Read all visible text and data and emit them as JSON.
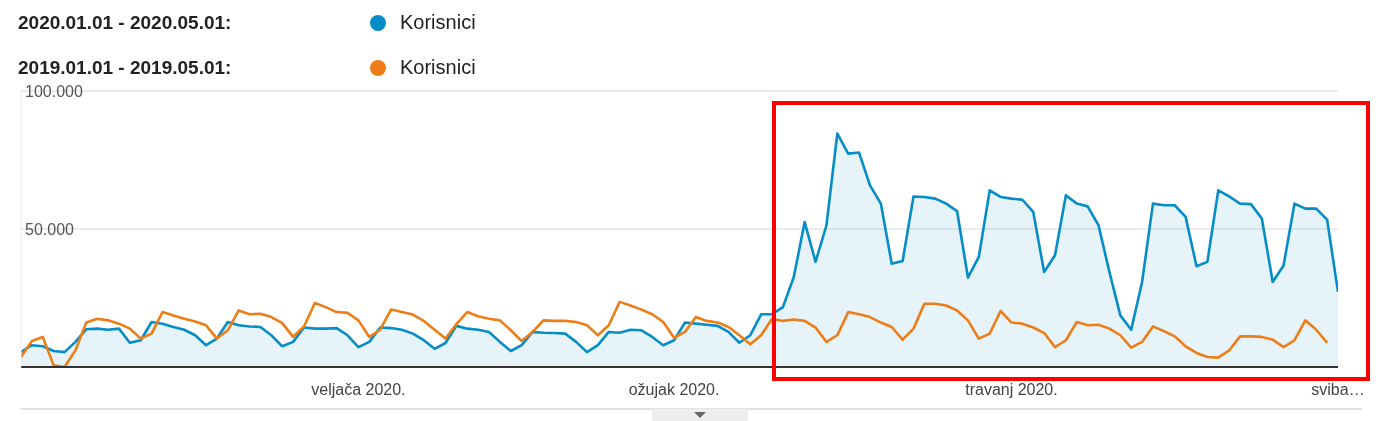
{
  "chart_data": {
    "type": "area",
    "legend": "top left",
    "grid": "y",
    "marker": "none",
    "line_style": "solid",
    "annotations": [
      "2020.01.01 - 2020.05.01:",
      "2019.01.01 - 2019.05.01:"
    ],
    "xlim": [
      "2020-01-01",
      "2020-05-01"
    ],
    "xticks": [
      {
        "value": "2020-02-01",
        "label": "veljača 2020."
      },
      {
        "value": "2020-03-01",
        "label": "ožujak 2020."
      },
      {
        "value": "2020-04-01",
        "label": "travanj 2020."
      },
      {
        "value": "2020-05-01",
        "label": "sviba…"
      }
    ],
    "ylim": [
      0,
      100000
    ],
    "yticks": [
      {
        "value": 0,
        "label": null
      },
      {
        "value": 50000,
        "label": "50.000"
      },
      {
        "value": 100000,
        "label": "100.000"
      }
    ],
    "x": [
      "2020-01-01",
      "2020-01-02",
      "2020-01-03",
      "2020-01-04",
      "2020-01-05",
      "2020-01-06",
      "2020-01-07",
      "2020-01-08",
      "2020-01-09",
      "2020-01-10",
      "2020-01-11",
      "2020-01-12",
      "2020-01-13",
      "2020-01-14",
      "2020-01-15",
      "2020-01-16",
      "2020-01-17",
      "2020-01-18",
      "2020-01-19",
      "2020-01-20",
      "2020-01-21",
      "2020-01-22",
      "2020-01-23",
      "2020-01-24",
      "2020-01-25",
      "2020-01-26",
      "2020-01-27",
      "2020-01-28",
      "2020-01-29",
      "2020-01-30",
      "2020-01-31",
      "2020-02-01",
      "2020-02-02",
      "2020-02-03",
      "2020-02-04",
      "2020-02-05",
      "2020-02-06",
      "2020-02-07",
      "2020-02-08",
      "2020-02-09",
      "2020-02-10",
      "2020-02-11",
      "2020-02-12",
      "2020-02-13",
      "2020-02-14",
      "2020-02-15",
      "2020-02-16",
      "2020-02-17",
      "2020-02-18",
      "2020-02-19",
      "2020-02-20",
      "2020-02-21",
      "2020-02-22",
      "2020-02-23",
      "2020-02-24",
      "2020-02-25",
      "2020-02-26",
      "2020-02-27",
      "2020-02-28",
      "2020-02-29",
      "2020-03-01",
      "2020-03-02",
      "2020-03-03",
      "2020-03-04",
      "2020-03-05",
      "2020-03-06",
      "2020-03-07",
      "2020-03-08",
      "2020-03-09",
      "2020-03-10",
      "2020-03-11",
      "2020-03-12",
      "2020-03-13",
      "2020-03-14",
      "2020-03-15",
      "2020-03-16",
      "2020-03-17",
      "2020-03-18",
      "2020-03-19",
      "2020-03-20",
      "2020-03-21",
      "2020-03-22",
      "2020-03-23",
      "2020-03-24",
      "2020-03-25",
      "2020-03-26",
      "2020-03-27",
      "2020-03-28",
      "2020-03-29",
      "2020-03-30",
      "2020-03-31",
      "2020-04-01",
      "2020-04-02",
      "2020-04-03",
      "2020-04-04",
      "2020-04-05",
      "2020-04-06",
      "2020-04-07",
      "2020-04-08",
      "2020-04-09",
      "2020-04-10",
      "2020-04-11",
      "2020-04-12",
      "2020-04-13",
      "2020-04-14",
      "2020-04-15",
      "2020-04-16",
      "2020-04-17",
      "2020-04-18",
      "2020-04-19",
      "2020-04-20",
      "2020-04-21",
      "2020-04-22",
      "2020-04-23",
      "2020-04-24",
      "2020-04-25",
      "2020-04-26",
      "2020-04-27",
      "2020-04-28",
      "2020-04-29",
      "2020-04-30",
      "2020-05-01"
    ],
    "series": [
      {
        "name": "Korisnici",
        "color": "#058dc7",
        "values": [
          5400,
          7900,
          7500,
          5800,
          5400,
          9100,
          13700,
          13900,
          13500,
          13900,
          8800,
          9700,
          16300,
          15700,
          14500,
          13500,
          11500,
          7900,
          10300,
          16300,
          15100,
          14700,
          14500,
          11500,
          7500,
          9100,
          14300,
          13900,
          13900,
          14100,
          11500,
          7200,
          9100,
          14300,
          14100,
          13500,
          12100,
          9700,
          6600,
          8700,
          14900,
          13900,
          13500,
          12700,
          9100,
          5800,
          7900,
          12700,
          12400,
          12300,
          12100,
          9100,
          5400,
          7900,
          12700,
          12400,
          13500,
          13300,
          10900,
          7900,
          9700,
          16100,
          15700,
          15300,
          14900,
          12700,
          8800,
          11500,
          19100,
          19100,
          21700,
          32600,
          52500,
          38100,
          51300,
          84600,
          77300,
          77700,
          65800,
          59200,
          37400,
          38400,
          61800,
          61600,
          61000,
          59200,
          56500,
          32400,
          39900,
          64000,
          61600,
          61000,
          60600,
          56200,
          34400,
          40500,
          62200,
          59200,
          58200,
          51300,
          34400,
          18700,
          13500,
          30800,
          59200,
          58600,
          58600,
          54400,
          36500,
          38100,
          64000,
          61800,
          59200,
          59000,
          53800,
          30800,
          36800,
          59200,
          57400,
          57400,
          53400,
          27200
        ]
      },
      {
        "name": "Korisnici",
        "type": "line",
        "color": "#ed7e17",
        "values": [
          3600,
          9400,
          10900,
          600,
          0,
          6000,
          16100,
          17500,
          16900,
          15700,
          13900,
          10300,
          12100,
          19900,
          18700,
          17500,
          16500,
          15100,
          10300,
          13300,
          20500,
          19100,
          19300,
          18100,
          15900,
          10900,
          14700,
          23200,
          21700,
          19900,
          19600,
          16900,
          10900,
          13500,
          20800,
          19900,
          19000,
          16700,
          13500,
          10300,
          15500,
          19900,
          18400,
          17500,
          16900,
          13300,
          9400,
          12700,
          16900,
          16700,
          16700,
          16300,
          15100,
          11500,
          15100,
          23600,
          22300,
          20800,
          19100,
          16300,
          10600,
          12700,
          18100,
          16700,
          16100,
          14500,
          11500,
          8200,
          11500,
          17500,
          16700,
          17200,
          16700,
          14300,
          9100,
          11500,
          19900,
          19100,
          18100,
          16100,
          14500,
          9900,
          13900,
          22900,
          22900,
          22300,
          20500,
          16900,
          10300,
          12100,
          20300,
          16100,
          15700,
          14300,
          12300,
          7200,
          9700,
          16300,
          15100,
          15300,
          13900,
          11500,
          7000,
          9100,
          14700,
          13000,
          11100,
          7500,
          5100,
          3600,
          3400,
          6000,
          11100,
          11100,
          10900,
          9900,
          7200,
          9700,
          16900,
          13500,
          8800,
          null
        ]
      }
    ]
  }
}
